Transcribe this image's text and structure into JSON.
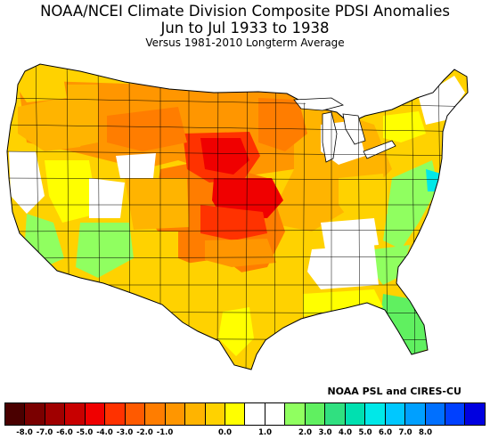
{
  "title": {
    "line1": "NOAA/NCEI Climate Division Composite PDSI Anomalies",
    "line2": "Jun to Jul 1933 to 1938",
    "line3": "Versus 1981-2010 Longterm Average"
  },
  "credit": "NOAA PSL and CIRES-CU",
  "legend": {
    "ticks": [
      "-8.0",
      "-7.0",
      "-6.0",
      "-5.0",
      "-4.0",
      "-3.0",
      "-2.0",
      "-1.0",
      "0.0",
      "1.0",
      "2.0",
      "3.0",
      "4.0",
      "5.0",
      "6.0",
      "7.0",
      "8.0"
    ],
    "colors": [
      "#4a0000",
      "#7a0000",
      "#a00000",
      "#c80000",
      "#f00000",
      "#ff3200",
      "#ff5a00",
      "#ff7d00",
      "#ff9600",
      "#ffb400",
      "#ffd200",
      "#ffff00",
      "#ffffff",
      "#ffffff",
      "#90ff60",
      "#60f060",
      "#30e080",
      "#00e0b0",
      "#00e8e8",
      "#00c8ff",
      "#00a0ff",
      "#0070ff",
      "#0040ff",
      "#0000e0"
    ]
  }
}
